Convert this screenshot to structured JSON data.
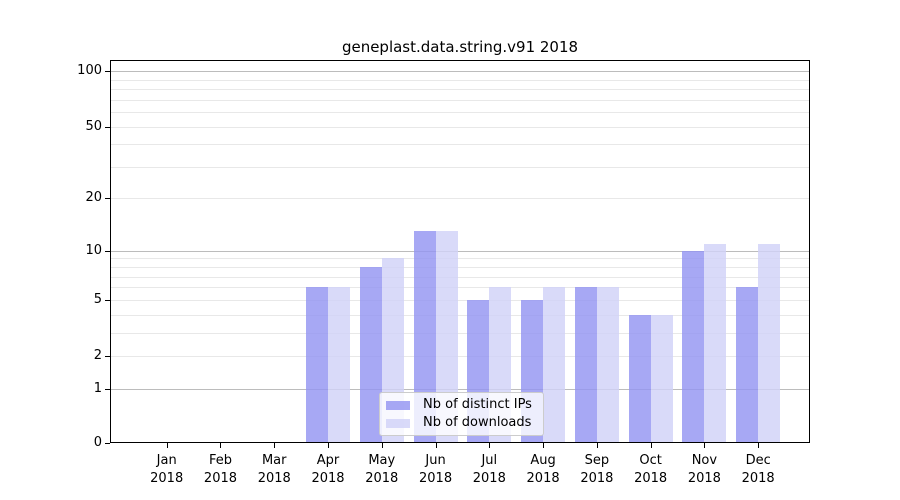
{
  "chart_data": {
    "type": "bar",
    "title": "geneplast.data.string.v91 2018",
    "year": "2018",
    "categories": [
      "Jan",
      "Feb",
      "Mar",
      "Apr",
      "May",
      "Jun",
      "Jul",
      "Aug",
      "Sep",
      "Oct",
      "Nov",
      "Dec"
    ],
    "series": [
      {
        "key": "distinct-ips",
        "name": "Nb of distinct IPs",
        "color": "#9495f2",
        "values": [
          0,
          0,
          0,
          6,
          8,
          13,
          5,
          5,
          6,
          4,
          10,
          6
        ]
      },
      {
        "key": "downloads",
        "name": "Nb of downloads",
        "color": "#d1d2f8",
        "values": [
          0,
          0,
          0,
          6,
          9,
          13,
          6,
          6,
          6,
          4,
          11,
          11
        ]
      }
    ],
    "bar_opacity": 0.82,
    "xlabel": "",
    "ylabel": "",
    "yscale": "log1p",
    "ylim": [
      0,
      115
    ],
    "y_ticks": [
      0,
      1,
      2,
      5,
      10,
      20,
      50,
      100
    ],
    "grid_major": [
      1,
      10,
      100
    ],
    "grid_minor": [
      2,
      3,
      4,
      5,
      6,
      7,
      8,
      9,
      20,
      30,
      40,
      50,
      60,
      70,
      80,
      90
    ],
    "legend": {
      "position": "lower center"
    },
    "colors": {
      "grid_major": "#bcbcbc",
      "grid_minor": "#e8e8e8",
      "axis": "#000000",
      "text": "#000000",
      "legend_border": "#cccccc",
      "background": "#ffffff"
    }
  }
}
